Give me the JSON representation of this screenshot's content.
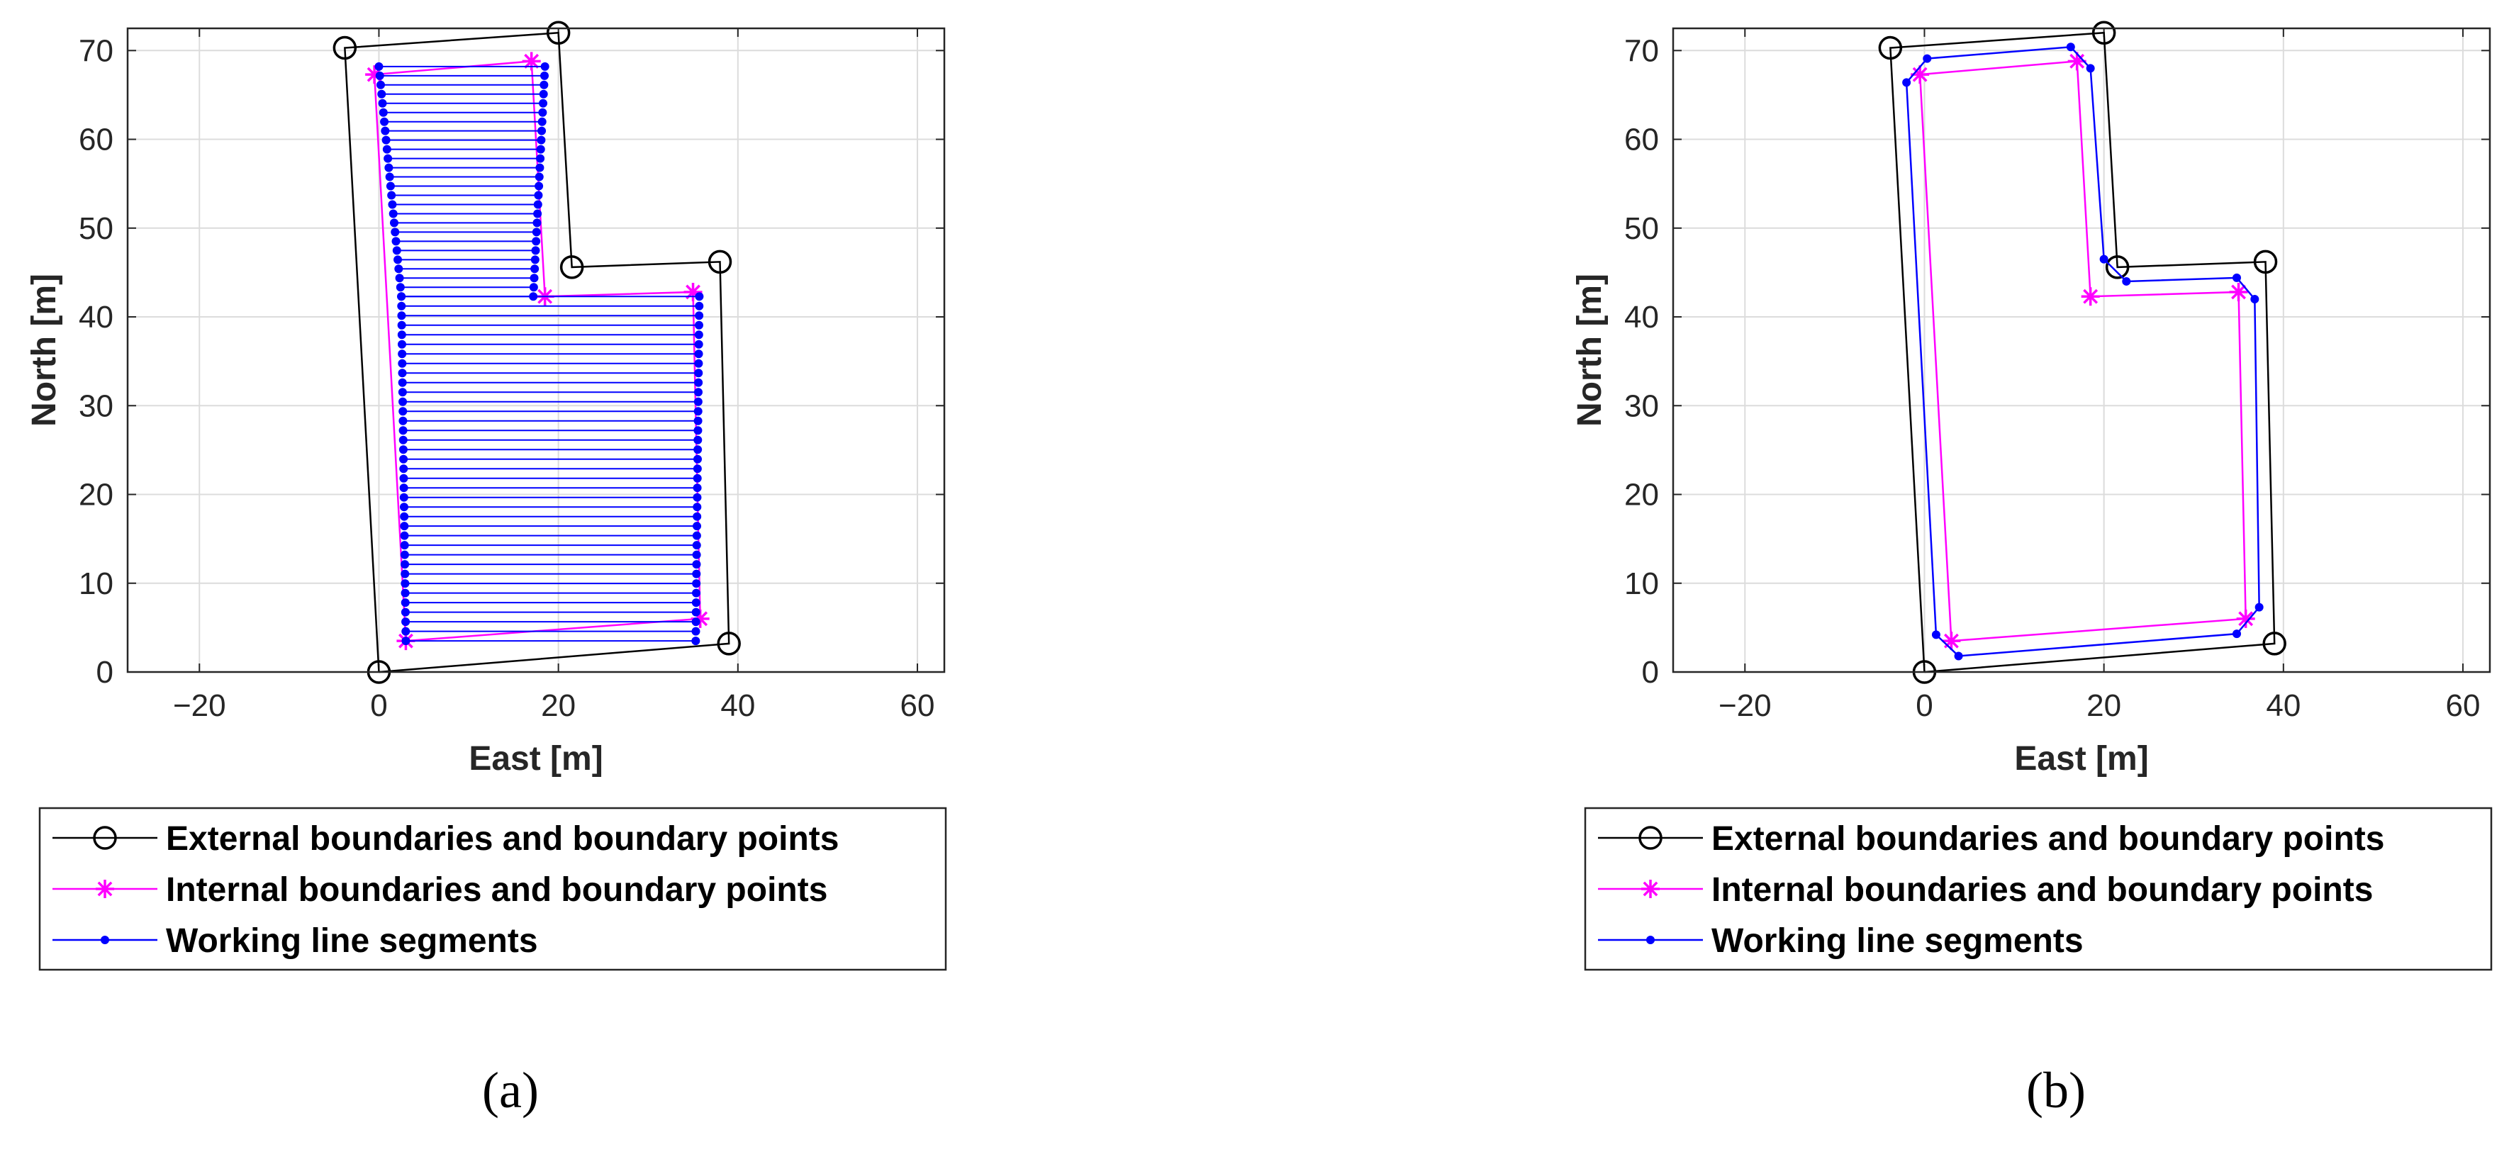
{
  "chart_data": [
    {
      "type": "line",
      "caption": "(a)",
      "xlabel": "East [m]",
      "ylabel": "North [m]",
      "xlim": [
        -28,
        63
      ],
      "ylim": [
        0,
        72.5
      ],
      "xticks": [
        -20,
        0,
        20,
        40,
        60
      ],
      "yticks": [
        0,
        10,
        20,
        30,
        40,
        50,
        60,
        70
      ],
      "grid": true,
      "legend": {
        "placement": "below",
        "entries": [
          "External boundaries and boundary points",
          "Internal boundaries and boundary points",
          "Working line segments"
        ]
      },
      "series": [
        {
          "name": "External boundaries and boundary points",
          "color": "#000000",
          "marker": "circle",
          "x": [
            0,
            39,
            38,
            21.5,
            20,
            -3.8,
            0
          ],
          "y": [
            0,
            3.2,
            46.2,
            45.6,
            72,
            70.3,
            0
          ]
        },
        {
          "name": "Internal boundaries and boundary points",
          "color": "#ff00ff",
          "marker": "asterisk",
          "x": [
            3,
            35.8,
            35,
            18.5,
            17,
            -0.5,
            3
          ],
          "y": [
            3.5,
            6,
            42.8,
            42.3,
            68.8,
            67.3,
            3.5
          ]
        },
        {
          "name": "Working line segments",
          "color": "#0000ff",
          "marker": "dot",
          "pattern": "parallel-sweep",
          "upper_region": {
            "left_x": [
              0,
              2.5
            ],
            "right_x": [
              17.2,
              18.5
            ],
            "y": [
              42.3,
              68.2
            ],
            "segments": 26
          },
          "lower_region": {
            "left_x": [
              2.5,
              3
            ],
            "right_x": [
              35.3,
              35.7
            ],
            "y": [
              3.5,
              42.3
            ],
            "segments": 37
          }
        }
      ]
    },
    {
      "type": "line",
      "caption": "(b)",
      "xlabel": "East [m]",
      "ylabel": "North [m]",
      "xlim": [
        -28,
        63
      ],
      "ylim": [
        0,
        72.5
      ],
      "xticks": [
        -20,
        0,
        20,
        40,
        60
      ],
      "yticks": [
        0,
        10,
        20,
        30,
        40,
        50,
        60,
        70
      ],
      "grid": true,
      "legend": {
        "placement": "below",
        "entries": [
          "External boundaries and boundary points",
          "Internal boundaries and boundary points",
          "Working line segments"
        ]
      },
      "series": [
        {
          "name": "External boundaries and boundary points",
          "color": "#000000",
          "marker": "circle",
          "x": [
            0,
            39,
            38,
            21.5,
            20,
            -3.8,
            0
          ],
          "y": [
            0,
            3.2,
            46.2,
            45.6,
            72,
            70.3,
            0
          ]
        },
        {
          "name": "Internal boundaries and boundary points",
          "color": "#ff00ff",
          "marker": "asterisk",
          "x": [
            3,
            35.8,
            35,
            18.5,
            17,
            -0.5,
            3
          ],
          "y": [
            3.5,
            6,
            42.8,
            42.3,
            68.8,
            67.3,
            3.5
          ]
        },
        {
          "name": "Working line segments",
          "color": "#0000ff",
          "marker": "dot",
          "pattern": "offset-loop",
          "x": [
            1.3,
            3.8,
            34.8,
            37.3,
            36.8,
            34.8,
            22.5,
            20,
            18.5,
            16.3,
            0.3,
            -2,
            1.3
          ],
          "y": [
            4.2,
            1.8,
            4.3,
            7.3,
            42,
            44.4,
            44,
            46.5,
            68,
            70.4,
            69.1,
            66.4,
            4.2
          ]
        }
      ]
    }
  ]
}
